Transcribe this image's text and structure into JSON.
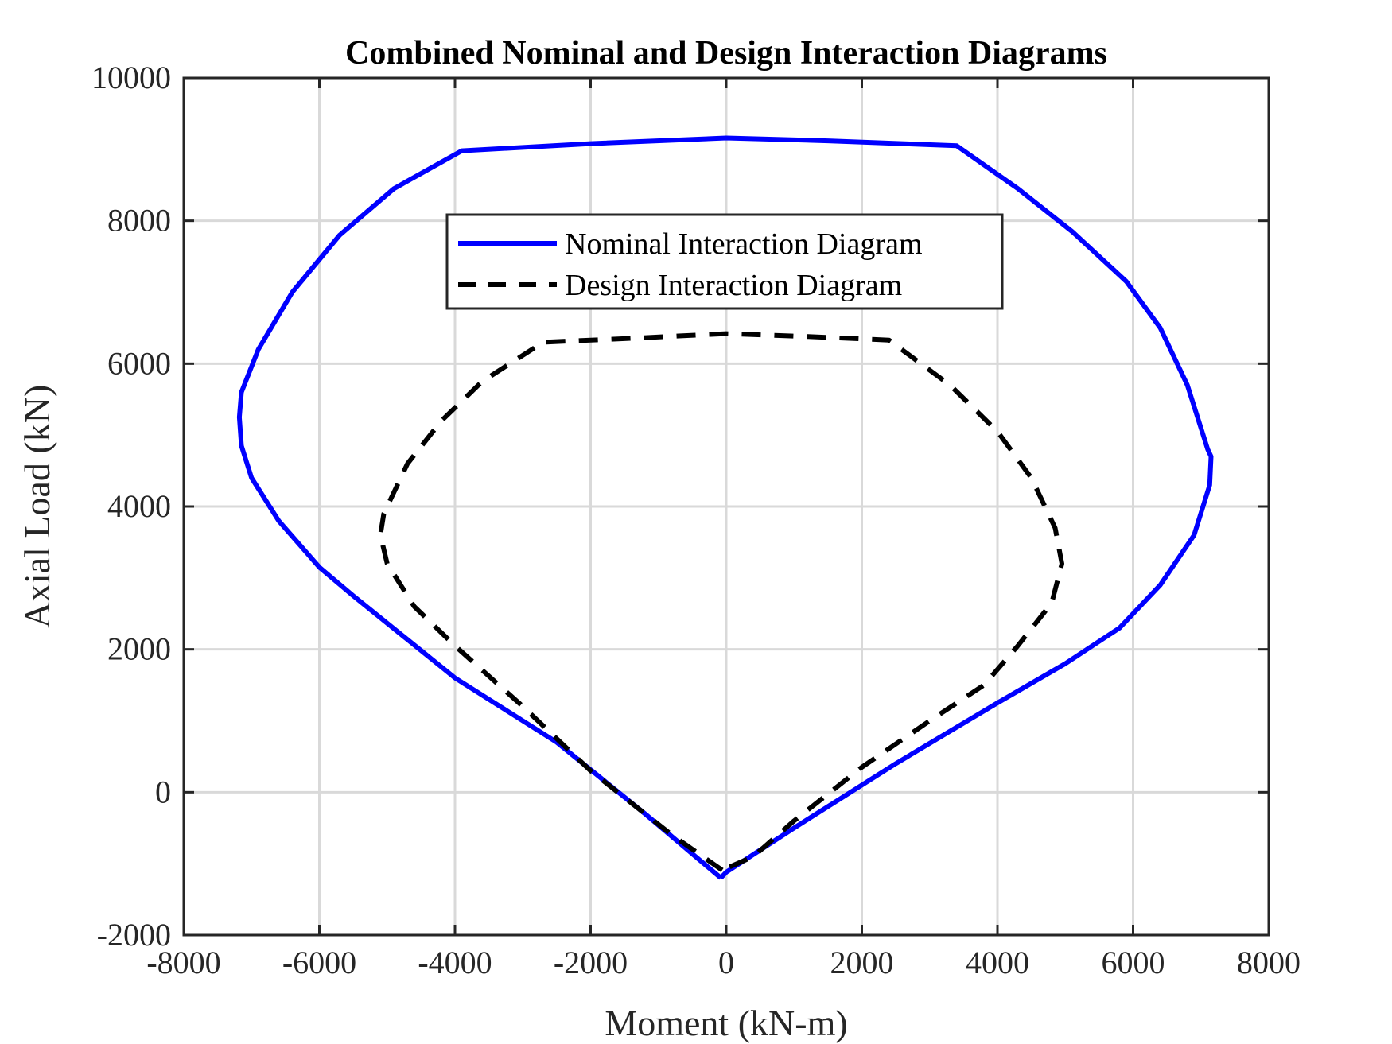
{
  "chart_data": {
    "type": "line",
    "title": "Combined Nominal and Design Interaction Diagrams",
    "xlabel": "Moment (kN-m)",
    "ylabel": "Axial Load (kN)",
    "xlim": [
      -8000,
      8000
    ],
    "ylim": [
      -2000,
      10000
    ],
    "xticks": [
      -8000,
      -6000,
      -4000,
      -2000,
      0,
      2000,
      4000,
      6000,
      8000
    ],
    "yticks": [
      -2000,
      0,
      2000,
      4000,
      6000,
      8000,
      10000
    ],
    "xtick_labels": [
      "-8000",
      "-6000",
      "-4000",
      "-2000",
      "0",
      "2000",
      "4000",
      "6000",
      "8000"
    ],
    "ytick_labels": [
      "-2000",
      "0",
      "2000",
      "4000",
      "6000",
      "8000",
      "10000"
    ],
    "grid": true,
    "legend_position": "top-center",
    "series": [
      {
        "name": "Nominal Interaction Diagram",
        "color": "#0000ff",
        "style": "solid",
        "points": [
          [
            -80,
            -1200
          ],
          [
            -1200,
            -300
          ],
          [
            -2500,
            700
          ],
          [
            -4000,
            1600
          ],
          [
            -5500,
            2750
          ],
          [
            -6000,
            3150
          ],
          [
            -6600,
            3800
          ],
          [
            -7000,
            4400
          ],
          [
            -7150,
            4850
          ],
          [
            -7180,
            5250
          ],
          [
            -7150,
            5600
          ],
          [
            -6900,
            6200
          ],
          [
            -6400,
            7000
          ],
          [
            -5700,
            7800
          ],
          [
            -4900,
            8450
          ],
          [
            -3900,
            8980
          ],
          [
            -2000,
            9080
          ],
          [
            0,
            9160
          ],
          [
            1500,
            9120
          ],
          [
            3400,
            9050
          ],
          [
            4300,
            8450
          ],
          [
            5100,
            7850
          ],
          [
            5900,
            7150
          ],
          [
            6400,
            6500
          ],
          [
            6800,
            5700
          ],
          [
            7100,
            4800
          ],
          [
            7150,
            4700
          ],
          [
            7130,
            4300
          ],
          [
            6900,
            3600
          ],
          [
            6400,
            2900
          ],
          [
            5800,
            2300
          ],
          [
            5000,
            1800
          ],
          [
            4000,
            1250
          ],
          [
            2500,
            400
          ],
          [
            1000,
            -500
          ],
          [
            0,
            -1120
          ],
          [
            -80,
            -1200
          ]
        ]
      },
      {
        "name": "Design Interaction Diagram",
        "color": "#000000",
        "style": "dashed",
        "points": [
          [
            -60,
            -1090
          ],
          [
            -800,
            -600
          ],
          [
            -2000,
            300
          ],
          [
            -3000,
            1200
          ],
          [
            -4000,
            2050
          ],
          [
            -4600,
            2600
          ],
          [
            -5000,
            3200
          ],
          [
            -5100,
            3600
          ],
          [
            -5050,
            3900
          ],
          [
            -4700,
            4600
          ],
          [
            -4200,
            5200
          ],
          [
            -3600,
            5750
          ],
          [
            -2700,
            6300
          ],
          [
            -1500,
            6350
          ],
          [
            0,
            6420
          ],
          [
            1200,
            6380
          ],
          [
            2400,
            6330
          ],
          [
            3300,
            5700
          ],
          [
            4000,
            5050
          ],
          [
            4500,
            4400
          ],
          [
            4850,
            3700
          ],
          [
            4950,
            3200
          ],
          [
            4800,
            2650
          ],
          [
            4300,
            2050
          ],
          [
            3800,
            1500
          ],
          [
            3000,
            1000
          ],
          [
            2000,
            350
          ],
          [
            1000,
            -400
          ],
          [
            400,
            -900
          ],
          [
            -60,
            -1090
          ]
        ]
      }
    ]
  }
}
